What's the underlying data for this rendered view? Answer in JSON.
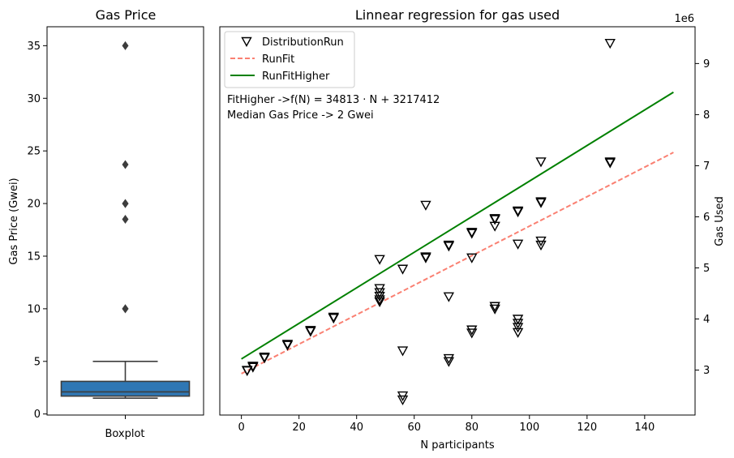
{
  "chart_data": [
    {
      "type": "box",
      "title": "Gas Price",
      "ylabel": "Gas Price (Gwei)",
      "xlabel": "",
      "category": "Boxplot",
      "ylim": [
        -0.1,
        36.8
      ],
      "yticks": [
        0,
        5,
        10,
        15,
        20,
        25,
        30,
        35
      ],
      "box": {
        "q1": 1.7,
        "median": 2.1,
        "q3": 3.1,
        "whisker_low": 1.5,
        "whisker_high": 5.0
      },
      "outliers": [
        35.0,
        23.7,
        20.0,
        20.0,
        18.5,
        10.0,
        10.0
      ],
      "colors": {
        "box": "#2f77b4",
        "edge": "#3d3d3d"
      },
      "grid": false
    },
    {
      "type": "scatter",
      "title": "Linnear regression for gas used",
      "xlabel": "N participants",
      "ylabel": "Gas Used",
      "y_offset_label": "1e6",
      "y_axis_side": "right",
      "xlim": [
        -7.5,
        157.5
      ],
      "ylim": [
        2.12,
        9.72
      ],
      "xticks": [
        0,
        20,
        40,
        60,
        80,
        100,
        120,
        140
      ],
      "yticks": [
        3,
        4,
        5,
        6,
        7,
        8,
        9
      ],
      "grid": false,
      "legend_position": "top-left",
      "annotations": [
        "FitHigher ->f(N) = 34813 · N + 3217412",
        "Median Gas Price -> 2 Gwei"
      ],
      "series": [
        {
          "name": "DistributionRun",
          "kind": "points",
          "marker": "triangle_down",
          "color": "#000000",
          "points": [
            [
              2,
              2.99
            ],
            [
              2,
              3.0
            ],
            [
              4,
              3.06
            ],
            [
              4,
              3.08
            ],
            [
              8,
              3.24
            ],
            [
              8,
              3.26
            ],
            [
              16,
              3.49
            ],
            [
              16,
              3.51
            ],
            [
              24,
              3.76
            ],
            [
              24,
              3.78
            ],
            [
              32,
              4.02
            ],
            [
              32,
              4.04
            ],
            [
              48,
              4.34
            ],
            [
              48,
              4.38
            ],
            [
              48,
              4.45
            ],
            [
              48,
              4.52
            ],
            [
              48,
              4.6
            ],
            [
              48,
              5.17
            ],
            [
              56,
              2.42
            ],
            [
              56,
              2.5
            ],
            [
              56,
              3.38
            ],
            [
              56,
              4.98
            ],
            [
              64,
              5.2
            ],
            [
              64,
              5.22
            ],
            [
              64,
              6.23
            ],
            [
              72,
              3.17
            ],
            [
              72,
              3.23
            ],
            [
              72,
              4.44
            ],
            [
              72,
              5.43
            ],
            [
              72,
              5.45
            ],
            [
              80,
              3.73
            ],
            [
              80,
              3.79
            ],
            [
              80,
              5.2
            ],
            [
              80,
              5.68
            ],
            [
              80,
              5.7
            ],
            [
              88,
              4.2
            ],
            [
              88,
              4.25
            ],
            [
              88,
              5.82
            ],
            [
              88,
              5.95
            ],
            [
              88,
              5.97
            ],
            [
              96,
              3.74
            ],
            [
              96,
              3.84
            ],
            [
              96,
              3.92
            ],
            [
              96,
              4.0
            ],
            [
              96,
              5.47
            ],
            [
              96,
              6.1
            ],
            [
              96,
              6.12
            ],
            [
              104,
              5.45
            ],
            [
              104,
              5.53
            ],
            [
              104,
              6.28
            ],
            [
              104,
              6.3
            ],
            [
              104,
              7.08
            ],
            [
              128,
              7.06
            ],
            [
              128,
              7.08
            ],
            [
              128,
              9.4
            ]
          ]
        },
        {
          "name": "RunFit",
          "kind": "line",
          "style": "dashed",
          "color": "#fa8072",
          "points": [
            [
              0,
              2.93
            ],
            [
              150,
              7.26
            ]
          ]
        },
        {
          "name": "RunFitHigher",
          "kind": "line",
          "style": "solid",
          "color": "#008000",
          "points": [
            [
              0,
              3.217412
            ],
            [
              150,
              8.439362
            ]
          ]
        }
      ]
    }
  ]
}
